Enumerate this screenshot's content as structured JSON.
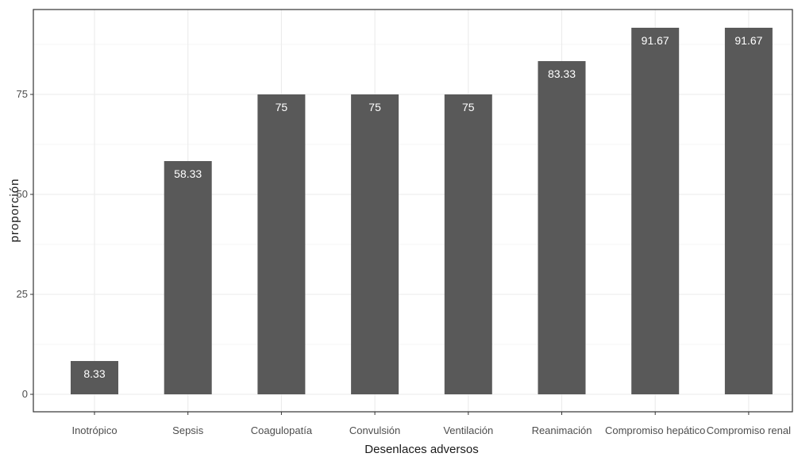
{
  "chart_data": {
    "type": "bar",
    "categories": [
      "Inotrópico",
      "Sepsis",
      "Coagulopatía",
      "Convulsión",
      "Ventilación",
      "Reanimación",
      "Compromiso hepático",
      "Compromiso renal"
    ],
    "values": [
      8.33,
      58.33,
      75,
      75,
      75,
      83.33,
      91.67,
      91.67
    ],
    "data_labels": [
      "8.33",
      "58.33",
      "75",
      "75",
      "75",
      "83.33",
      "91.67",
      "91.67"
    ],
    "xlabel": "Desenlaces adversos",
    "ylabel": "proporción",
    "ylim": [
      -3,
      97
    ],
    "yticks": [
      0,
      25,
      50,
      75
    ],
    "grid": true,
    "colors": {
      "bar": "#595959",
      "grid": "#ebebeb",
      "panel_border": "#333333",
      "label": "#ffffff"
    }
  }
}
